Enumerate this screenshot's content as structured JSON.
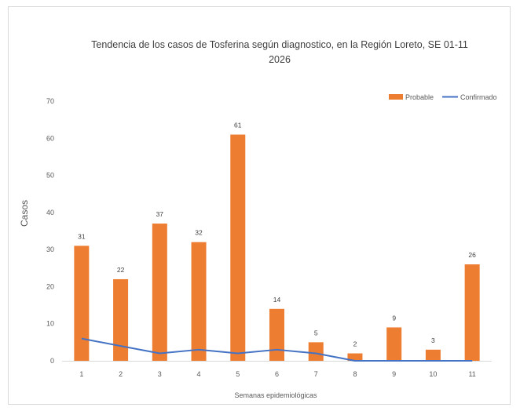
{
  "chart_data": {
    "type": "bar",
    "title_line1": "Tendencia de los casos de Tosferina según diagnostico, en la Región Loreto, SE 01-11",
    "title_line2": "2026",
    "xlabel": "Semanas epidemiológicas",
    "ylabel": "Casos",
    "categories": [
      "1",
      "2",
      "3",
      "4",
      "5",
      "6",
      "7",
      "8",
      "9",
      "10",
      "11"
    ],
    "ylim": [
      0,
      70
    ],
    "yticks": [
      0,
      10,
      20,
      30,
      40,
      50,
      60,
      70
    ],
    "grid": false,
    "legend_position": "top-right",
    "series": [
      {
        "name": "Probable",
        "kind": "bar",
        "color": "#ed7d31",
        "values": [
          31,
          22,
          37,
          32,
          61,
          14,
          5,
          2,
          9,
          3,
          26
        ],
        "data_labels": [
          "31",
          "22",
          "37",
          "32",
          "61",
          "14",
          "5",
          "2",
          "9",
          "3",
          "26"
        ]
      },
      {
        "name": "Confirmado",
        "kind": "line",
        "color": "#4472c4",
        "values": [
          6,
          4,
          2,
          3,
          2,
          3,
          2,
          0,
          0,
          0,
          0
        ]
      }
    ]
  }
}
